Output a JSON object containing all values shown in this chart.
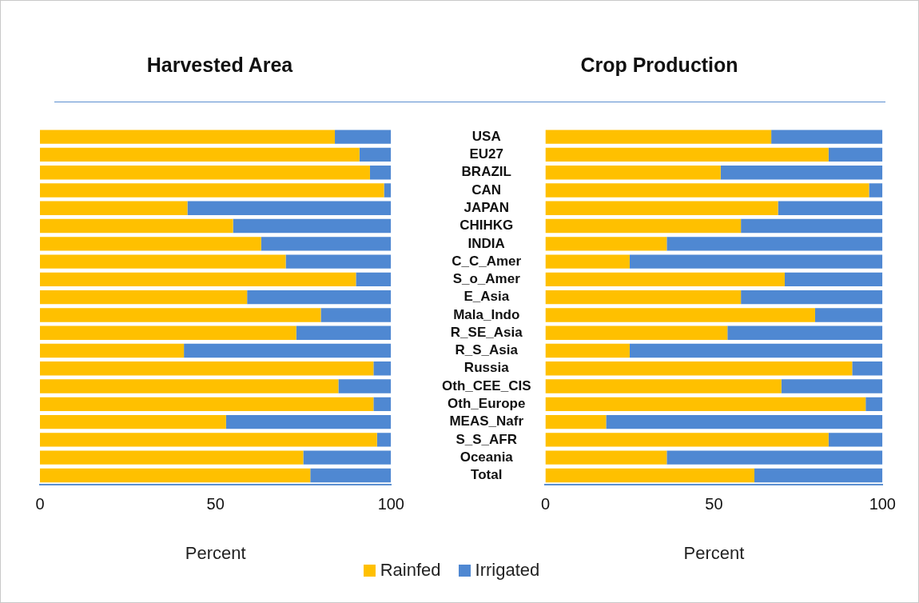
{
  "chart_data": [
    {
      "type": "bar",
      "title": "Harvested Area",
      "xlabel": "Percent",
      "orientation": "horizontal",
      "stacked": true,
      "legend": "bottom",
      "tick_labels": "x",
      "categories": [
        null,
        null,
        null,
        null,
        null,
        null,
        null,
        null,
        null,
        null,
        null,
        null,
        null,
        null,
        null,
        null,
        null,
        null,
        null,
        null
      ],
      "series": [
        {
          "name": "Rainfed",
          "color": "#ffc000",
          "values": [
            84,
            91,
            94,
            98,
            42,
            55,
            63,
            70,
            90,
            59,
            80,
            73,
            41,
            95,
            85,
            95,
            53,
            96,
            75,
            77
          ]
        },
        {
          "name": "Irrigated",
          "color": "#4f88d2",
          "values": [
            16,
            9,
            6,
            2,
            58,
            45,
            37,
            30,
            10,
            41,
            20,
            27,
            59,
            5,
            15,
            5,
            47,
            4,
            25,
            23
          ]
        }
      ],
      "xlim": [
        0,
        100
      ],
      "xticks": [
        0,
        50,
        100
      ],
      "grid": false
    },
    {
      "type": "bar",
      "title": "Crop Production",
      "xlabel": "Percent",
      "orientation": "horizontal",
      "stacked": true,
      "legend": "bottom",
      "categories": [
        "USA",
        "EU27",
        "BRAZIL",
        "CAN",
        "JAPAN",
        "CHIHKG",
        "INDIA",
        "C_C_Amer",
        "S_o_Amer",
        "E_Asia",
        "Mala_Indo",
        "R_SE_Asia",
        "R_S_Asia",
        "Russia",
        "Oth_CEE_CIS",
        "Oth_Europe",
        "MEAS_Nafr",
        "S_S_AFR",
        "Oceania",
        "Total"
      ],
      "series": [
        {
          "name": "Rainfed",
          "color": "#ffc000",
          "values": [
            67,
            84,
            52,
            96,
            69,
            58,
            36,
            25,
            71,
            58,
            80,
            54,
            25,
            91,
            70,
            95,
            18,
            84,
            36,
            62
          ]
        },
        {
          "name": "Irrigated",
          "color": "#4f88d2",
          "values": [
            33,
            16,
            48,
            4,
            31,
            42,
            64,
            75,
            29,
            42,
            20,
            46,
            75,
            9,
            30,
            5,
            82,
            16,
            64,
            38
          ]
        }
      ],
      "xlim": [
        0,
        100
      ],
      "xticks": [
        0,
        50,
        100
      ],
      "grid": false
    }
  ]
}
